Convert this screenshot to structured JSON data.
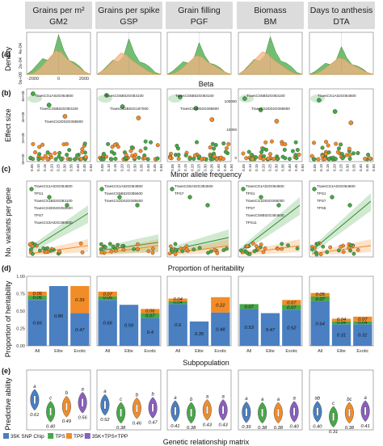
{
  "headers": [
    {
      "title": "Grains per m²",
      "abbr": "GM2"
    },
    {
      "title": "Grains per spike",
      "abbr": "GSP"
    },
    {
      "title": "Grain filling",
      "abbr": "PGF"
    },
    {
      "title": "Biomass",
      "abbr": "BM"
    },
    {
      "title": "Days to anthesis",
      "abbr": "DTA"
    }
  ],
  "panel_labels": [
    "(a)",
    "(b)",
    "(c)",
    "(d)",
    "(e)"
  ],
  "colors": {
    "chip": "#4a7fc1",
    "tps": "#46a846",
    "tpp": "#f28c28",
    "all": "#8a5fbf",
    "green_dark": "#2e8b2e",
    "peach": "#f4b183"
  },
  "chart_data": [
    {
      "type": "area",
      "panel": "a",
      "ylabel": "Density",
      "xlabel": "Beta",
      "x_ticks": [
        "-2000",
        "0",
        "2000"
      ],
      "y_ticks": [
        "0e+00",
        "2e-04",
        "4e-04"
      ],
      "series": [
        {
          "name": "TPS",
          "values": [
            0,
            0.1,
            0.25,
            0.4,
            0.35,
            0.5,
            1.0,
            0.6,
            0.35,
            0.3,
            0.2,
            0.05,
            0
          ]
        },
        {
          "name": "TPP",
          "values": [
            0,
            0.05,
            0.15,
            0.3,
            0.45,
            0.6,
            0.55,
            0.4,
            0.3,
            0.2,
            0.1,
            0.03,
            0
          ]
        }
      ]
    },
    {
      "type": "scatter",
      "panel": "b",
      "ylabel": "Effect size",
      "xlabel": "Minor allele frequency",
      "gm2_y_ticks": [
        "0e+00",
        "2e+05",
        "4e+05",
        "6e+05"
      ],
      "x_ticks": [
        "0.05",
        "0.10",
        "0.15",
        "0.20",
        "0.25",
        "0.30",
        "0.35",
        "0.40",
        "0.45",
        "0.50"
      ],
      "annotations": [
        [
          "TraesCS1A02G064800",
          "TraesCS5B02G083100",
          "TraesCS2D02G085800"
        ],
        [
          "TraesCS5B02G083100",
          "TraesCS2B02G187000"
        ],
        [
          "TraesCS5B02G083100",
          "TraesCS3D02G085800"
        ],
        [
          "TraesCS5B02G083100",
          "TraesCS2D02G085800"
        ],
        [
          "TraesCS1A02G064800"
        ]
      ],
      "panel_y_ticks": [
        [
          "0",
          "10000",
          "100000"
        ]
      ]
    },
    {
      "type": "scatter",
      "panel": "c",
      "ylabel": "No. variants per gene",
      "xlabel": "Proportion of heritability",
      "annotations": [
        [
          "TraesCS1A02G064800",
          "TPS1",
          "TraesCS1B02G083100",
          "TraesCS3D02G083500",
          "TPS7",
          "TraesCS3A02G390500"
        ],
        [
          "TraesCS1A02G064800",
          "TraesCS5B02G085600",
          "TraesCS2D02G085600"
        ],
        [
          "TraesCS5A02G384500",
          "TPS7"
        ],
        [
          "TraesCS1A02G064800",
          "TPS1",
          "TraesCS1D02G065000",
          "TPS7",
          "TraesCS6B02G384500",
          "TPS11"
        ],
        [
          "TraesCS1A02G064800",
          "TPS1",
          "TPS7",
          "TPS5"
        ]
      ]
    },
    {
      "type": "bar",
      "panel": "d",
      "ylabel": "Proportion of heritability",
      "xlabel": "Subpopulation",
      "categories": [
        "All",
        "Elite",
        "Exotic"
      ],
      "y_ticks": [
        "0.00",
        "0.25",
        "0.50",
        "0.75",
        "1.00"
      ],
      "ylim": [
        0,
        1
      ],
      "groups": [
        {
          "trait": "GM2",
          "stacks": [
            [
              0.66,
              0.06,
              0.06
            ],
            [
              0.86,
              0,
              0
            ],
            [
              0.47,
              0,
              0.39
            ]
          ]
        },
        {
          "trait": "GSP",
          "stacks": [
            [
              0.66,
              0.05,
              0.07
            ],
            [
              0.59,
              0,
              0
            ],
            [
              0.4,
              0.07,
              0.06
            ]
          ]
        },
        {
          "trait": "PGF",
          "stacks": [
            [
              0.6,
              0.04,
              0.04
            ],
            [
              0.35,
              0,
              0
            ],
            [
              0.48,
              0,
              0.22
            ]
          ]
        },
        {
          "trait": "BM",
          "stacks": [
            [
              0.53,
              0.07,
              0
            ],
            [
              0.47,
              0,
              0
            ],
            [
              0.52,
              0.07,
              0.07
            ]
          ]
        },
        {
          "trait": "DTA",
          "stacks": [
            [
              0.64,
              0.07,
              0.05
            ],
            [
              0.31,
              0.04,
              0.04
            ],
            [
              0.31,
              0.04,
              0.07
            ]
          ]
        }
      ]
    },
    {
      "type": "violin",
      "panel": "e",
      "ylabel": "Predictive ability",
      "xlabel": "Genetic relationship matrix",
      "groups": [
        {
          "trait": "GM2",
          "medians": [
            "0.61",
            "0.40",
            "0.49",
            "0.56"
          ],
          "letters": [
            "a",
            "c",
            "b",
            "a"
          ]
        },
        {
          "trait": "GSP",
          "medians": [
            "0.52",
            "0.38",
            "0.46",
            "0.47"
          ],
          "letters": [
            "a",
            "c",
            "b",
            "b"
          ]
        },
        {
          "trait": "PGF",
          "medians": [
            "0.41",
            "0.38",
            "0.43",
            "0.43"
          ],
          "letters": [
            "a",
            "b",
            "a",
            "a"
          ]
        },
        {
          "trait": "BM",
          "medians": [
            "0.39",
            "0.38",
            "0.38",
            "0.40"
          ],
          "letters": [
            "a",
            "a",
            "a",
            "a"
          ]
        },
        {
          "trait": "DTA",
          "medians": [
            "0.40",
            "0.31",
            "0.38",
            "0.41"
          ],
          "letters": [
            "ab",
            "c",
            "bc",
            "a"
          ]
        }
      ],
      "legend": [
        "35K SNP Chip",
        "TPS",
        "TPP",
        "35K+TPS+TPP"
      ]
    }
  ]
}
